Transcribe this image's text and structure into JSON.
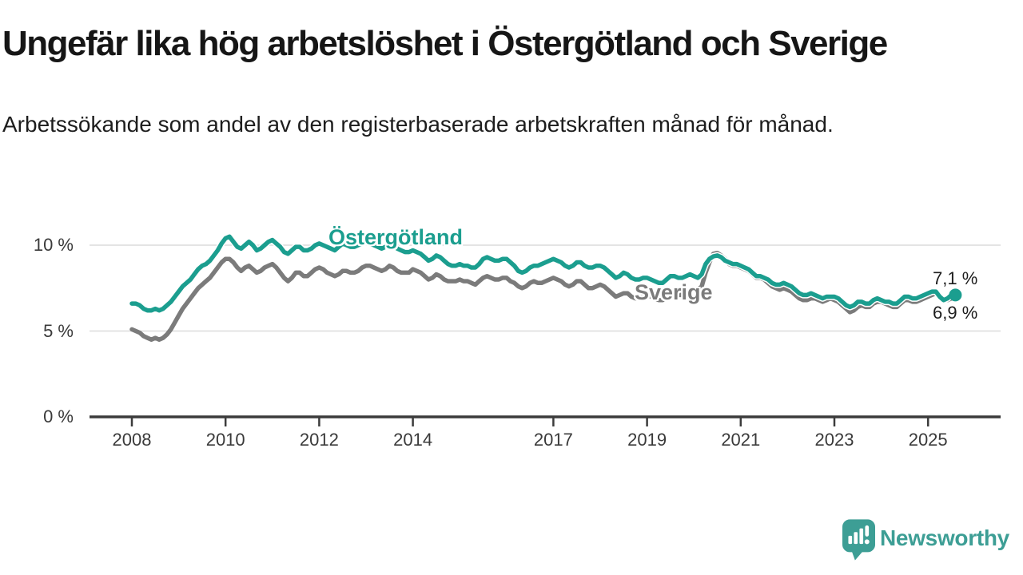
{
  "header": {
    "title": "Ungefär lika hög arbetslöshet i Östergötland och Sverige",
    "subtitle": "Arbetssökande som andel av den registerbaserade arbetskraften månad för månad."
  },
  "chart_data": {
    "type": "line",
    "x_unit": "month",
    "x_start": "2008-01",
    "x_end": "2025-08",
    "ylim": [
      0,
      11
    ],
    "grid": "horizontal",
    "y_ticks": [
      {
        "value": 0,
        "label": "0 %"
      },
      {
        "value": 5,
        "label": "5 %"
      },
      {
        "value": 10,
        "label": "10 %"
      }
    ],
    "x_ticks": [
      {
        "year": 2008,
        "label": "2008"
      },
      {
        "year": 2010,
        "label": "2010"
      },
      {
        "year": 2012,
        "label": "2012"
      },
      {
        "year": 2014,
        "label": "2014"
      },
      {
        "year": 2017,
        "label": "2017"
      },
      {
        "year": 2019,
        "label": "2019"
      },
      {
        "year": 2021,
        "label": "2021"
      },
      {
        "year": 2023,
        "label": "2023"
      },
      {
        "year": 2025,
        "label": "2025"
      }
    ],
    "series": [
      {
        "name": "Östergötland",
        "color": "#1b9e8f",
        "end_label": "7,1 %",
        "end_value": 7.1,
        "values": [
          6.6,
          6.6,
          6.5,
          6.3,
          6.2,
          6.2,
          6.3,
          6.2,
          6.3,
          6.5,
          6.7,
          7.0,
          7.3,
          7.6,
          7.8,
          8.0,
          8.3,
          8.6,
          8.8,
          8.9,
          9.1,
          9.4,
          9.7,
          10.1,
          10.4,
          10.5,
          10.2,
          9.9,
          9.8,
          10.0,
          10.2,
          10.0,
          9.7,
          9.8,
          10.0,
          10.2,
          10.3,
          10.1,
          9.9,
          9.6,
          9.5,
          9.7,
          9.9,
          9.9,
          9.7,
          9.7,
          9.8,
          10.0,
          10.1,
          10.0,
          9.9,
          9.8,
          9.7,
          9.9,
          10.1,
          10.0,
          9.9,
          9.9,
          10.0,
          10.1,
          10.2,
          10.1,
          10.0,
          9.9,
          9.8,
          9.9,
          10.1,
          10.0,
          9.8,
          9.7,
          9.6,
          9.6,
          9.7,
          9.6,
          9.5,
          9.3,
          9.1,
          9.2,
          9.4,
          9.3,
          9.1,
          8.9,
          8.8,
          8.8,
          8.9,
          8.8,
          8.8,
          8.7,
          8.7,
          8.9,
          9.2,
          9.3,
          9.2,
          9.1,
          9.1,
          9.2,
          9.2,
          9.0,
          8.8,
          8.5,
          8.4,
          8.5,
          8.7,
          8.8,
          8.8,
          8.9,
          9.0,
          9.1,
          9.2,
          9.1,
          9.0,
          8.8,
          8.7,
          8.8,
          9.0,
          9.0,
          8.8,
          8.7,
          8.7,
          8.8,
          8.8,
          8.7,
          8.5,
          8.3,
          8.1,
          8.2,
          8.4,
          8.3,
          8.1,
          8.0,
          8.0,
          8.1,
          8.1,
          8.0,
          7.9,
          7.8,
          7.8,
          8.0,
          8.2,
          8.2,
          8.1,
          8.1,
          8.2,
          8.3,
          8.2,
          8.1,
          8.3,
          8.9,
          9.2,
          9.35,
          9.4,
          9.3,
          9.1,
          9.0,
          8.9,
          8.9,
          8.8,
          8.7,
          8.6,
          8.4,
          8.2,
          8.2,
          8.1,
          8.0,
          7.8,
          7.7,
          7.7,
          7.8,
          7.7,
          7.6,
          7.4,
          7.2,
          7.1,
          7.1,
          7.2,
          7.1,
          7.0,
          6.9,
          7.0,
          7.0,
          7.0,
          6.9,
          6.7,
          6.5,
          6.4,
          6.5,
          6.7,
          6.7,
          6.6,
          6.6,
          6.8,
          6.9,
          6.8,
          6.7,
          6.7,
          6.6,
          6.6,
          6.8,
          7.0,
          7.0,
          6.9,
          6.9,
          7.0,
          7.1,
          7.2,
          7.3,
          7.3,
          7.0,
          6.8,
          6.9,
          7.1,
          7.1
        ]
      },
      {
        "name": "Sverige",
        "color": "#7b7b7b",
        "end_label": "6,9 %",
        "end_value": 6.9,
        "values": [
          5.1,
          5.0,
          4.9,
          4.7,
          4.6,
          4.5,
          4.6,
          4.5,
          4.6,
          4.8,
          5.1,
          5.5,
          5.9,
          6.3,
          6.6,
          6.9,
          7.2,
          7.5,
          7.7,
          7.9,
          8.1,
          8.4,
          8.7,
          9.0,
          9.2,
          9.2,
          9.0,
          8.7,
          8.5,
          8.7,
          8.8,
          8.6,
          8.4,
          8.5,
          8.7,
          8.8,
          8.9,
          8.7,
          8.4,
          8.1,
          7.9,
          8.1,
          8.4,
          8.4,
          8.2,
          8.2,
          8.4,
          8.6,
          8.7,
          8.6,
          8.4,
          8.3,
          8.2,
          8.3,
          8.5,
          8.5,
          8.4,
          8.4,
          8.5,
          8.7,
          8.8,
          8.8,
          8.7,
          8.6,
          8.5,
          8.6,
          8.8,
          8.7,
          8.5,
          8.4,
          8.4,
          8.4,
          8.6,
          8.5,
          8.4,
          8.2,
          8.0,
          8.1,
          8.3,
          8.2,
          8.0,
          7.9,
          7.9,
          7.9,
          8.0,
          7.9,
          7.9,
          7.8,
          7.7,
          7.9,
          8.1,
          8.2,
          8.1,
          8.0,
          8.0,
          8.1,
          8.1,
          7.9,
          7.8,
          7.6,
          7.5,
          7.6,
          7.8,
          7.9,
          7.8,
          7.8,
          7.9,
          8.0,
          8.1,
          8.0,
          7.9,
          7.7,
          7.6,
          7.7,
          7.9,
          7.9,
          7.7,
          7.5,
          7.5,
          7.6,
          7.7,
          7.6,
          7.4,
          7.2,
          7.0,
          7.1,
          7.2,
          7.2,
          7.0,
          6.9,
          6.9,
          7.0,
          7.1,
          7.0,
          6.9,
          6.8,
          6.8,
          7.0,
          7.2,
          7.2,
          7.1,
          7.1,
          7.2,
          7.4,
          7.4,
          7.4,
          7.6,
          8.4,
          9.0,
          9.5,
          9.55,
          9.4,
          9.2,
          8.9,
          8.8,
          8.8,
          8.7,
          8.6,
          8.5,
          8.3,
          8.1,
          8.1,
          8.0,
          7.8,
          7.6,
          7.5,
          7.4,
          7.5,
          7.4,
          7.3,
          7.1,
          6.9,
          6.8,
          6.8,
          6.9,
          6.9,
          6.8,
          6.7,
          6.8,
          6.9,
          6.8,
          6.7,
          6.5,
          6.3,
          6.1,
          6.2,
          6.4,
          6.5,
          6.4,
          6.4,
          6.6,
          6.7,
          6.7,
          6.6,
          6.5,
          6.4,
          6.4,
          6.6,
          6.8,
          6.8,
          6.7,
          6.7,
          6.8,
          6.9,
          7.0,
          7.1,
          7.2,
          7.0,
          6.9,
          6.8,
          6.9,
          6.9
        ]
      }
    ]
  },
  "footer": {
    "brand": "Newsworthy",
    "brand_color": "#3d9e95",
    "logo_icon": "speech-bubble-bar-chart"
  },
  "style": {
    "grid_color": "#dcdcdc",
    "axis_color": "#3c3c3c",
    "text_color": "#3a3a3a"
  }
}
